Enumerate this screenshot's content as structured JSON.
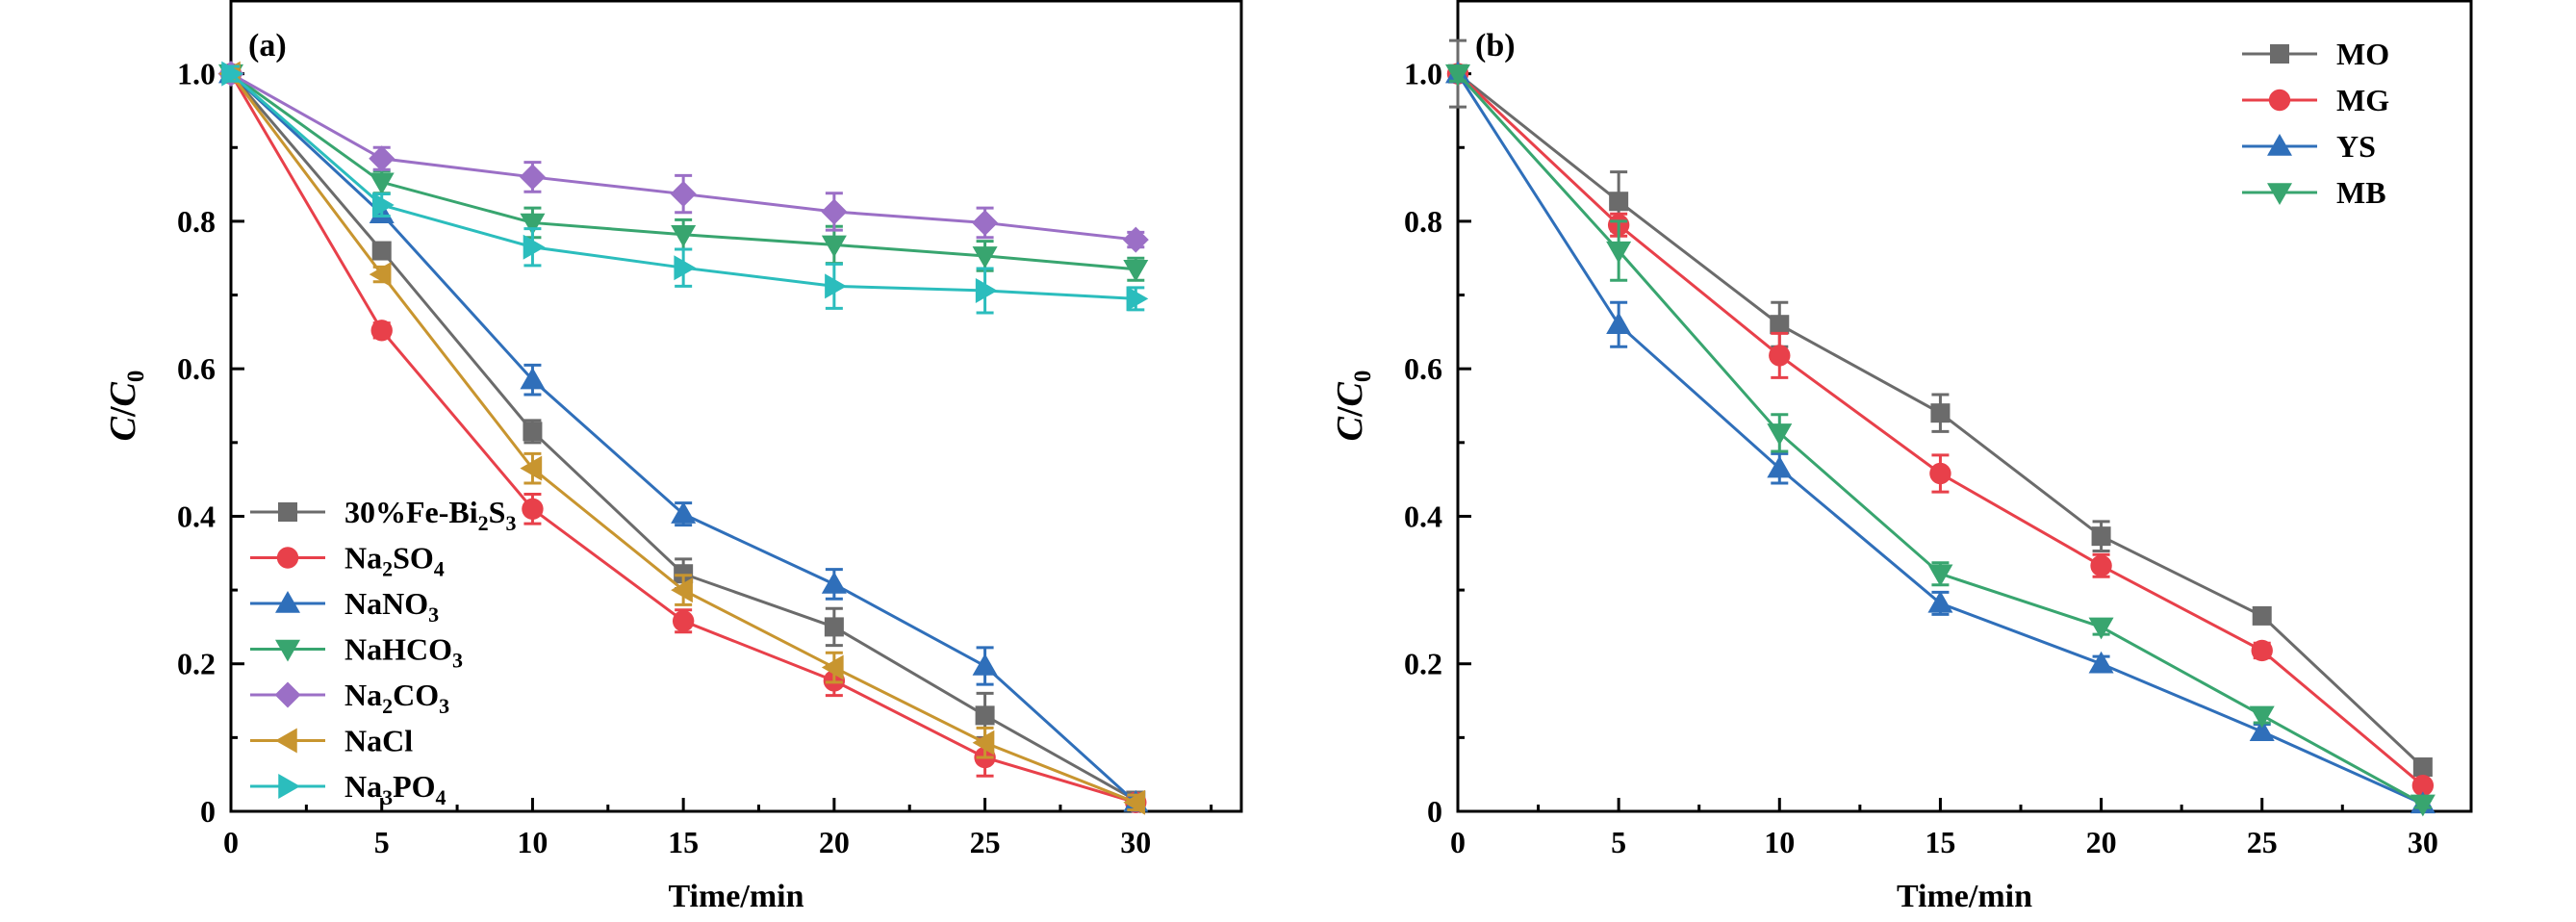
{
  "chart_data": [
    {
      "type": "line",
      "panel_label": "(a)",
      "xlabel": "Time/min",
      "ylabel": "C/C0",
      "ylabel_parts": [
        "C",
        "/",
        "C",
        "0"
      ],
      "xlim": [
        0,
        33.5
      ],
      "ylim": [
        0,
        1.1
      ],
      "xticks": [
        0,
        5,
        10,
        15,
        20,
        25,
        30
      ],
      "xtick_labels": [
        "0",
        "5",
        "10",
        "15",
        "20",
        "25",
        "30"
      ],
      "yticks": [
        0,
        0.2,
        0.4,
        0.6,
        0.8,
        1.0
      ],
      "ytick_labels": [
        "0",
        "0.2",
        "0.4",
        "0.6",
        "0.8",
        "1.0"
      ],
      "legend_position": "lower-left",
      "x": [
        0,
        5,
        10,
        15,
        20,
        25,
        30
      ],
      "series": [
        {
          "name": "30%Fe-Bi2S3",
          "legend_parts": [
            [
              "30%Fe-Bi",
              false
            ],
            [
              "2",
              true
            ],
            [
              "S",
              false
            ],
            [
              "3",
              true
            ]
          ],
          "color": "#6b6b6b",
          "marker": "square",
          "values": [
            1.0,
            0.76,
            0.515,
            0.322,
            0.25,
            0.13,
            0.015
          ],
          "errors": [
            0.01,
            0.01,
            0.015,
            0.02,
            0.025,
            0.03,
            0.01
          ]
        },
        {
          "name": "Na2SO4",
          "legend_parts": [
            [
              "Na",
              false
            ],
            [
              "2",
              true
            ],
            [
              "SO",
              false
            ],
            [
              "4",
              true
            ]
          ],
          "color": "#e8404a",
          "marker": "circle",
          "values": [
            1.0,
            0.652,
            0.41,
            0.258,
            0.177,
            0.073,
            0.012
          ],
          "errors": [
            0.01,
            0.01,
            0.02,
            0.015,
            0.02,
            0.025,
            0.01
          ]
        },
        {
          "name": "NaNO3",
          "legend_parts": [
            [
              "NaNO",
              false
            ],
            [
              "3",
              true
            ]
          ],
          "color": "#2f6fba",
          "marker": "triangle-up",
          "values": [
            1.0,
            0.81,
            0.585,
            0.403,
            0.308,
            0.197,
            0.012
          ],
          "errors": [
            0.01,
            0.01,
            0.02,
            0.015,
            0.02,
            0.025,
            0.01
          ]
        },
        {
          "name": "NaHCO3",
          "legend_parts": [
            [
              "NaHCO",
              false
            ],
            [
              "3",
              true
            ]
          ],
          "color": "#38a56f",
          "marker": "triangle-down",
          "values": [
            1.0,
            0.853,
            0.798,
            0.782,
            0.768,
            0.753,
            0.735
          ],
          "errors": [
            0.01,
            0.015,
            0.02,
            0.02,
            0.025,
            0.02,
            0.015
          ]
        },
        {
          "name": "Na2CO3",
          "legend_parts": [
            [
              "Na",
              false
            ],
            [
              "2",
              true
            ],
            [
              "CO",
              false
            ],
            [
              "3",
              true
            ]
          ],
          "color": "#9b6fc6",
          "marker": "diamond",
          "values": [
            1.0,
            0.885,
            0.86,
            0.837,
            0.813,
            0.798,
            0.775
          ],
          "errors": [
            0.01,
            0.015,
            0.02,
            0.025,
            0.025,
            0.02,
            0.01
          ]
        },
        {
          "name": "NaCl",
          "legend_parts": [
            [
              "NaCl",
              false
            ]
          ],
          "color": "#c8952f",
          "marker": "triangle-left",
          "values": [
            1.0,
            0.728,
            0.465,
            0.3,
            0.195,
            0.093,
            0.012
          ],
          "errors": [
            0.01,
            0.01,
            0.02,
            0.02,
            0.02,
            0.02,
            0.01
          ]
        },
        {
          "name": "Na3PO4",
          "legend_parts": [
            [
              "Na",
              false
            ],
            [
              "3",
              true
            ],
            [
              "PO",
              false
            ],
            [
              "4",
              true
            ]
          ],
          "color": "#2bbdbd",
          "marker": "triangle-right",
          "values": [
            1.0,
            0.822,
            0.765,
            0.737,
            0.712,
            0.706,
            0.695
          ],
          "errors": [
            0.01,
            0.015,
            0.025,
            0.025,
            0.03,
            0.03,
            0.015
          ]
        }
      ]
    },
    {
      "type": "line",
      "panel_label": "(b)",
      "xlabel": "Time/min",
      "ylabel": "C/C0",
      "ylabel_parts": [
        "C",
        "/",
        "C",
        "0"
      ],
      "xlim": [
        0,
        31.5
      ],
      "ylim": [
        0,
        1.1
      ],
      "xticks": [
        0,
        5,
        10,
        15,
        20,
        25,
        30
      ],
      "xtick_labels": [
        "0",
        "5",
        "10",
        "15",
        "20",
        "25",
        "30"
      ],
      "yticks": [
        0,
        0.2,
        0.4,
        0.6,
        0.8,
        1.0
      ],
      "ytick_labels": [
        "0",
        "0.2",
        "0.4",
        "0.6",
        "0.8",
        "1.0"
      ],
      "legend_position": "top-right",
      "x": [
        0,
        5,
        10,
        15,
        20,
        25,
        30
      ],
      "series": [
        {
          "name": "MO",
          "legend_parts": [
            [
              "MO",
              false
            ]
          ],
          "color": "#6b6b6b",
          "marker": "square",
          "values": [
            1.0,
            0.827,
            0.66,
            0.54,
            0.373,
            0.265,
            0.06
          ],
          "errors": [
            0.045,
            0.04,
            0.03,
            0.025,
            0.02,
            0.01,
            0.005
          ]
        },
        {
          "name": "MG",
          "legend_parts": [
            [
              "MG",
              false
            ]
          ],
          "color": "#e8404a",
          "marker": "circle",
          "values": [
            1.0,
            0.795,
            0.618,
            0.458,
            0.333,
            0.218,
            0.035
          ],
          "errors": [
            0.01,
            0.015,
            0.03,
            0.025,
            0.015,
            0.01,
            0.005
          ]
        },
        {
          "name": "YS",
          "legend_parts": [
            [
              "YS",
              false
            ]
          ],
          "color": "#2f6fba",
          "marker": "triangle-up",
          "values": [
            1.0,
            0.66,
            0.465,
            0.282,
            0.2,
            0.108,
            0.01
          ],
          "errors": [
            0.01,
            0.03,
            0.02,
            0.015,
            0.01,
            0.01,
            0.005
          ]
        },
        {
          "name": "MB",
          "legend_parts": [
            [
              "MB",
              false
            ]
          ],
          "color": "#38a56f",
          "marker": "triangle-down",
          "values": [
            1.0,
            0.76,
            0.513,
            0.322,
            0.25,
            0.13,
            0.01
          ],
          "errors": [
            0.01,
            0.04,
            0.025,
            0.015,
            0.01,
            0.01,
            0.005
          ]
        }
      ]
    }
  ]
}
